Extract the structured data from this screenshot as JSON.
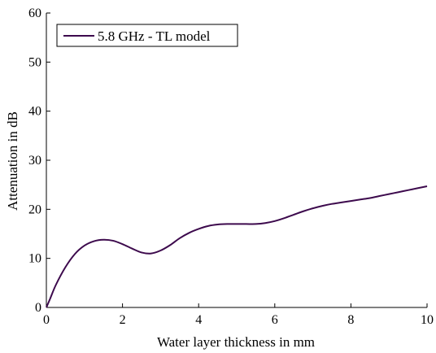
{
  "chart_data": {
    "type": "line",
    "xlabel": "Water layer thickness in mm",
    "ylabel": "Attenuation in dB",
    "xlim": [
      0,
      10
    ],
    "ylim": [
      0,
      60
    ],
    "xticks": [
      0,
      2,
      4,
      6,
      8,
      10
    ],
    "yticks": [
      0,
      10,
      20,
      30,
      40,
      50,
      60
    ],
    "xtick_labels": [
      "0",
      "2",
      "4",
      "6",
      "8",
      "10"
    ],
    "ytick_labels": [
      "0",
      "10",
      "20",
      "30",
      "40",
      "50",
      "60"
    ],
    "grid": false,
    "legend_position": "top-left",
    "series": [
      {
        "name": "5.8 GHz - TL model",
        "color": "#3d0a4d",
        "x": [
          0,
          0.1,
          0.25,
          0.5,
          0.75,
          1.0,
          1.25,
          1.5,
          1.75,
          2.0,
          2.25,
          2.5,
          2.75,
          3.0,
          3.25,
          3.5,
          3.75,
          4.0,
          4.25,
          4.5,
          4.75,
          5.0,
          5.25,
          5.5,
          5.75,
          6.0,
          6.25,
          6.5,
          6.75,
          7.0,
          7.25,
          7.5,
          7.75,
          8.0,
          8.25,
          8.5,
          8.75,
          9.0,
          9.25,
          9.5,
          9.75,
          10.0
        ],
        "values": [
          0,
          1.8,
          4.6,
          8.2,
          10.9,
          12.6,
          13.5,
          13.8,
          13.6,
          12.9,
          12.0,
          11.2,
          11.0,
          11.6,
          12.7,
          14.1,
          15.2,
          16.0,
          16.6,
          16.9,
          17.0,
          17.0,
          17.0,
          17.0,
          17.2,
          17.6,
          18.2,
          18.9,
          19.6,
          20.2,
          20.7,
          21.1,
          21.4,
          21.7,
          22.0,
          22.3,
          22.7,
          23.1,
          23.5,
          23.9,
          24.3,
          24.7
        ]
      }
    ]
  }
}
